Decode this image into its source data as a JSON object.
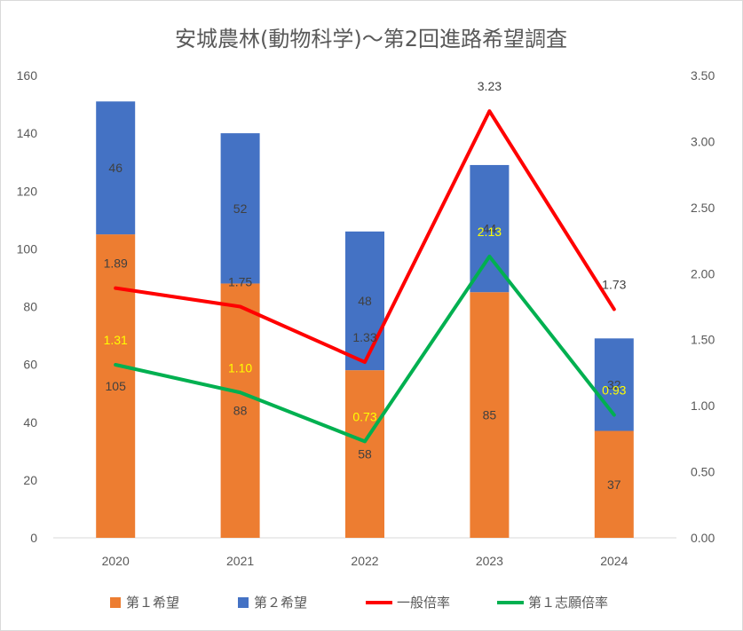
{
  "chart_data": {
    "type": "bar",
    "title": "安城農林(動物科学)〜第2回進路希望調査",
    "categories": [
      "2020",
      "2021",
      "2022",
      "2023",
      "2024"
    ],
    "left_axis": {
      "min": 0,
      "max": 160,
      "step": 20,
      "ticks": [
        "0",
        "20",
        "40",
        "60",
        "80",
        "100",
        "120",
        "140",
        "160"
      ]
    },
    "right_axis": {
      "min": 0,
      "max": 3.5,
      "step": 0.5,
      "ticks": [
        "0.00",
        "0.50",
        "1.00",
        "1.50",
        "2.00",
        "2.50",
        "3.00",
        "3.50"
      ]
    },
    "series": [
      {
        "name": "第１希望",
        "kind": "stacked-bar",
        "axis": "left",
        "color": "#ed7d31",
        "values": [
          105,
          88,
          58,
          85,
          37
        ],
        "labels": [
          "105",
          "88",
          "58",
          "85",
          "37"
        ],
        "label_color": "#404040"
      },
      {
        "name": "第２希望",
        "kind": "stacked-bar",
        "axis": "left",
        "color": "#4472c4",
        "values": [
          46,
          52,
          48,
          44,
          32
        ],
        "labels": [
          "46",
          "52",
          "48",
          "44",
          "32"
        ],
        "label_color": "#404040"
      },
      {
        "name": "一般倍率",
        "kind": "line",
        "axis": "right",
        "color": "#ff0000",
        "values": [
          1.89,
          1.75,
          1.33,
          3.23,
          1.73
        ],
        "labels": [
          "1.89",
          "1.75",
          "1.33",
          "3.23",
          "1.73"
        ],
        "label_color": "#404040"
      },
      {
        "name": "第１志願倍率",
        "kind": "line",
        "axis": "right",
        "color": "#00b050",
        "values": [
          1.31,
          1.1,
          0.73,
          2.13,
          0.93
        ],
        "labels": [
          "1.31",
          "1.10",
          "0.73",
          "2.13",
          "0.93"
        ],
        "label_color": "#ffff00"
      }
    ],
    "grid": false,
    "legend_position": "bottom"
  }
}
